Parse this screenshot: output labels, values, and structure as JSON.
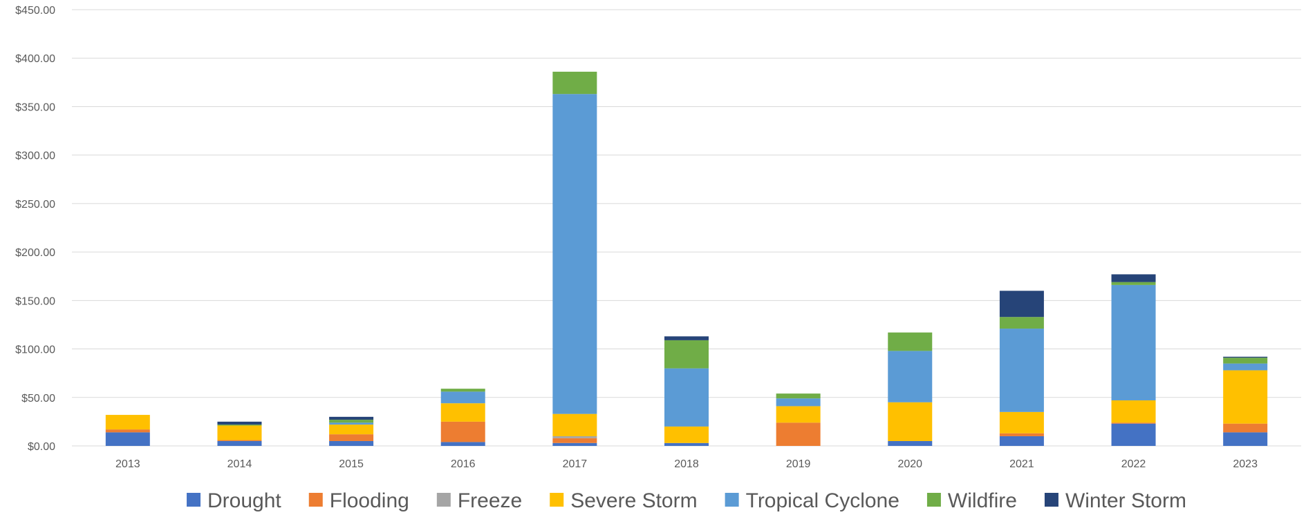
{
  "chart_data": {
    "type": "bar",
    "stacked": true,
    "title": "",
    "xlabel": "",
    "ylabel": "",
    "categories": [
      "2013",
      "2014",
      "2015",
      "2016",
      "2017",
      "2018",
      "2019",
      "2020",
      "2021",
      "2022",
      "2023"
    ],
    "ylim": [
      0,
      450
    ],
    "yticks": [
      0,
      50,
      100,
      150,
      200,
      250,
      300,
      350,
      400,
      450
    ],
    "ytick_labels": [
      "$0.00",
      "$50.00",
      "$100.00",
      "$150.00",
      "$200.00",
      "$250.00",
      "$300.00",
      "$350.00",
      "$400.00",
      "$450.00"
    ],
    "grid": true,
    "legend_position": "bottom",
    "series": [
      {
        "name": "Drought",
        "color": "#4472C4",
        "values": [
          14,
          5,
          5,
          4,
          3,
          3,
          0,
          5,
          10,
          23,
          14
        ]
      },
      {
        "name": "Flooding",
        "color": "#ED7D31",
        "values": [
          3,
          1,
          7,
          21,
          5,
          0,
          24,
          0,
          3,
          1,
          9
        ]
      },
      {
        "name": "Freeze",
        "color": "#A5A5A5",
        "values": [
          0,
          0,
          0,
          0,
          2,
          0,
          0,
          0,
          0,
          0,
          0
        ]
      },
      {
        "name": "Severe Storm",
        "color": "#FFC000",
        "values": [
          15,
          15,
          10,
          19,
          23,
          17,
          17,
          40,
          22,
          23,
          55
        ]
      },
      {
        "name": "Tropical Cyclone",
        "color": "#5B9BD5",
        "values": [
          0,
          0,
          2,
          12,
          330,
          60,
          8,
          53,
          86,
          119,
          7
        ]
      },
      {
        "name": "Wildfire",
        "color": "#70AD47",
        "values": [
          0,
          1,
          3,
          3,
          23,
          29,
          5,
          19,
          12,
          3,
          6
        ]
      },
      {
        "name": "Winter Storm",
        "color": "#264478",
        "values": [
          0,
          3,
          3,
          0,
          0,
          4,
          0,
          0,
          27,
          8,
          1
        ]
      }
    ]
  }
}
